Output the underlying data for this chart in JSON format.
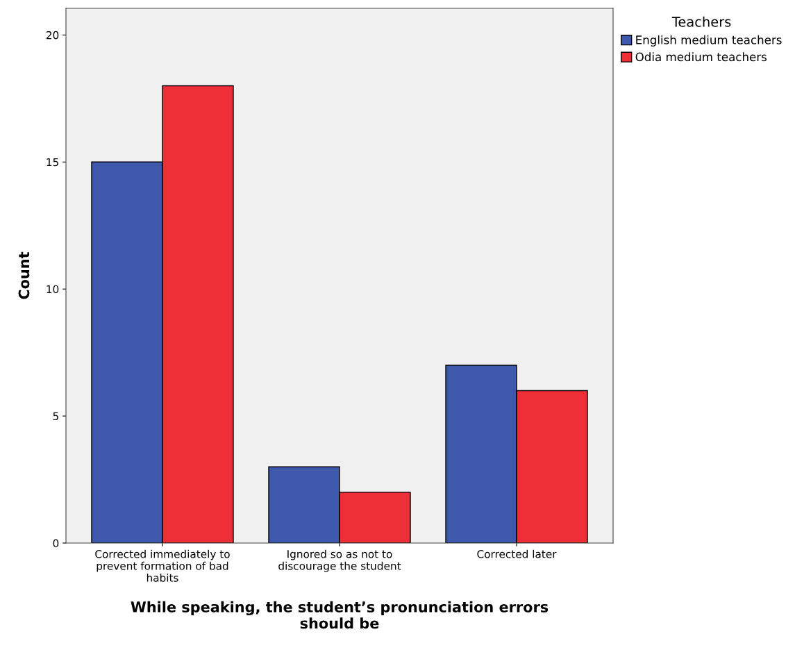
{
  "chart_data": {
    "type": "bar",
    "xlabel": "While speaking, the student’s pronunciation errors\nshould be",
    "ylabel": "Count",
    "categories": [
      "Corrected immediately to\nprevent formation of bad\nhabits",
      "Ignored so as not to\ndiscourage the student",
      "Corrected later"
    ],
    "series": [
      {
        "name": "English medium teachers",
        "color": "#3e58ac",
        "values": [
          15,
          3,
          7
        ]
      },
      {
        "name": "Odia medium teachers",
        "color": "#ef2f37",
        "values": [
          18,
          2,
          6
        ]
      }
    ],
    "legend_title": "Teachers",
    "legend": "top right",
    "grid": false,
    "ylim": [
      0,
      21.05
    ],
    "yticks": [
      0,
      5,
      10,
      15,
      20
    ]
  }
}
